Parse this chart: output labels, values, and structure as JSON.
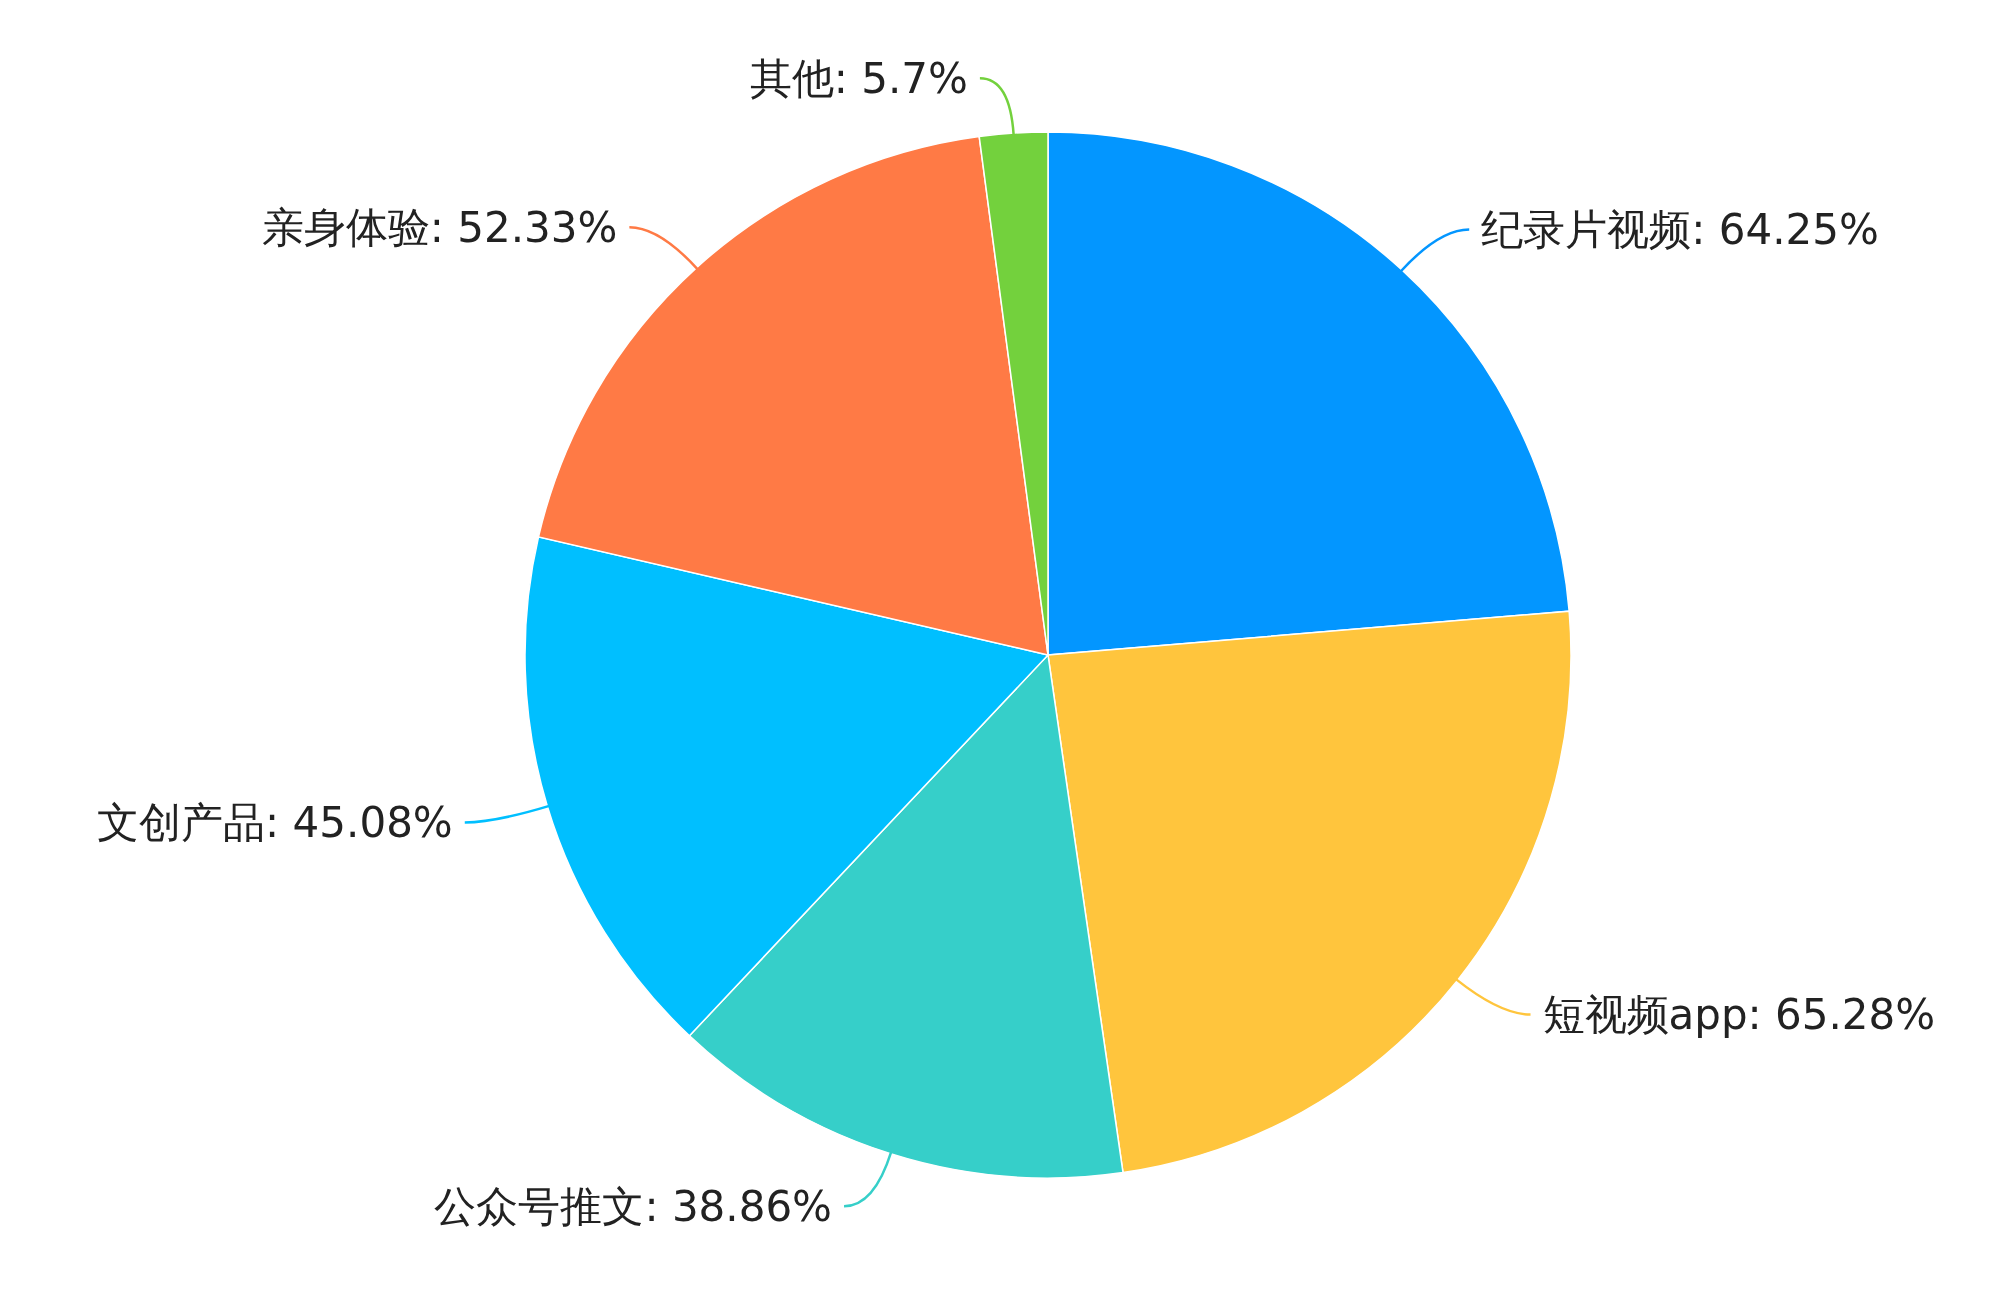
{
  "chart_data": {
    "type": "pie",
    "categories": [
      "纪录片视频",
      "短视频app",
      "公众号推文",
      "文创产品",
      "亲身体验",
      "其他"
    ],
    "values": [
      64.25,
      65.28,
      38.86,
      45.08,
      52.33,
      5.7
    ],
    "value_labels": [
      "64.25%",
      "65.28%",
      "38.86%",
      "45.08%",
      "52.33%",
      "5.7%"
    ],
    "colors": [
      "#0396ff",
      "#ffc53d",
      "#36cfc9",
      "#00bfff",
      "#ff7a45",
      "#73d13d"
    ]
  }
}
